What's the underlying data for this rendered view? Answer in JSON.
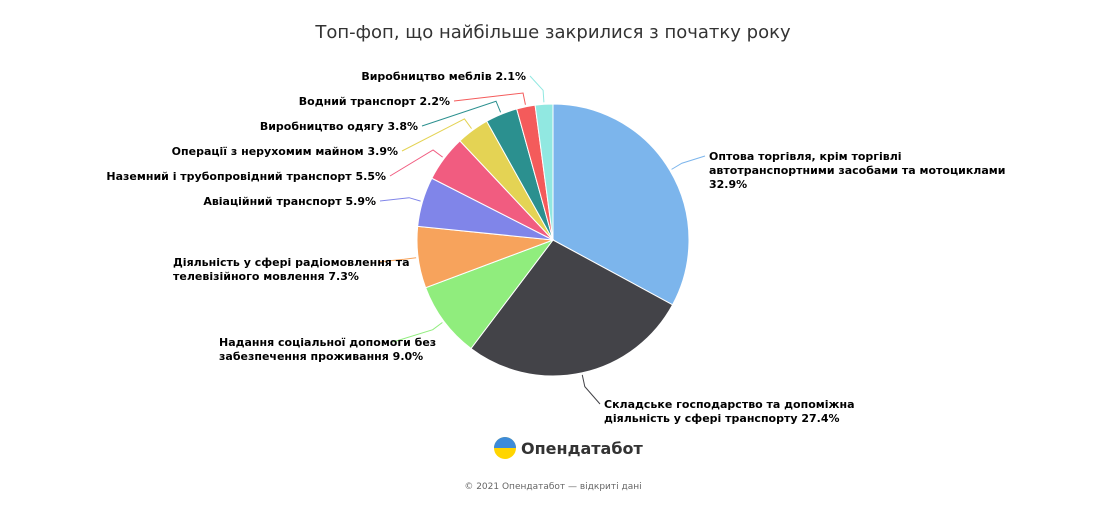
{
  "chart_data": {
    "type": "pie",
    "title": "Топ-фоп, що найбільше закрилися з початку року",
    "slices": [
      {
        "label_lines": [
          "Оптова торгівля, крім торгівлі",
          "автотранспортними засобами та мотоциклами",
          "32.9%"
        ],
        "value": 32.9,
        "color": "#7cb5ec"
      },
      {
        "label_lines": [
          "Складське господарство та допоміжна",
          "діяльність у сфері транспорту 27.4%"
        ],
        "value": 27.4,
        "color": "#434348"
      },
      {
        "label_lines": [
          "Надання соціальної допомоги без",
          "забезпечення проживання 9.0%"
        ],
        "value": 9.0,
        "color": "#90ed7d"
      },
      {
        "label_lines": [
          "Діяльність у сфері радіомовлення та",
          "телевізійного мовлення 7.3%"
        ],
        "value": 7.3,
        "color": "#f7a35c"
      },
      {
        "label_lines": [
          "Авіаційний транспорт 5.9%"
        ],
        "value": 5.9,
        "color": "#8085e9"
      },
      {
        "label_lines": [
          "Наземний і трубопровідний транспорт 5.5%"
        ],
        "value": 5.5,
        "color": "#f15c80"
      },
      {
        "label_lines": [
          "Операції з нерухомим майном 3.9%"
        ],
        "value": 3.9,
        "color": "#e4d354"
      },
      {
        "label_lines": [
          "Виробництво одягу 3.8%"
        ],
        "value": 3.8,
        "color": "#2b908f"
      },
      {
        "label_lines": [
          "Водний транспорт 2.2%"
        ],
        "value": 2.2,
        "color": "#f45b5b"
      },
      {
        "label_lines": [
          "Виробництво меблів 2.1%"
        ],
        "value": 2.1,
        "color": "#91e8e1"
      }
    ]
  },
  "brand": {
    "name": "Опендатабот"
  },
  "footer": {
    "text": "© 2021 Опендатабот — відкриті дані"
  }
}
